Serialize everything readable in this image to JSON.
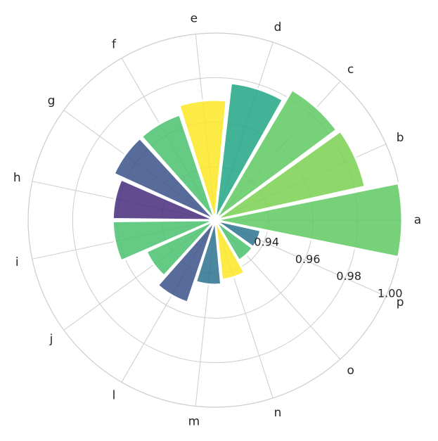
{
  "chart_data": {
    "type": "bar",
    "projection": "polar",
    "categories": [
      "a",
      "b",
      "c",
      "d",
      "e",
      "f",
      "g",
      "h",
      "i",
      "j",
      "l",
      "m",
      "n",
      "o",
      "p"
    ],
    "values": [
      1.0,
      0.985,
      0.984,
      0.978,
      0.97,
      0.966,
      0.966,
      0.962,
      0.962,
      0.95,
      0.955,
      0.945,
      0.943,
      0.937,
      0.937
    ],
    "colors": [
      "#5ec962",
      "#7ad151",
      "#5ec962",
      "#21a685",
      "#fde725",
      "#4ac16d",
      "#3b528b",
      "#472d7b",
      "#4ac16d",
      "#4ac16d",
      "#3b528b",
      "#2c728e",
      "#fde725",
      "#4ac16d",
      "#2c728e"
    ],
    "r_ticks": [
      "0.94",
      "0.96",
      "0.98",
      "1.00"
    ],
    "r_tick_values": [
      0.94,
      0.96,
      0.98,
      1.0
    ],
    "rlim": [
      0.916,
      1.0
    ],
    "theta_start": "east",
    "direction": "counterclockwise",
    "grid": true,
    "title": "",
    "xlabel": "",
    "ylabel": ""
  }
}
